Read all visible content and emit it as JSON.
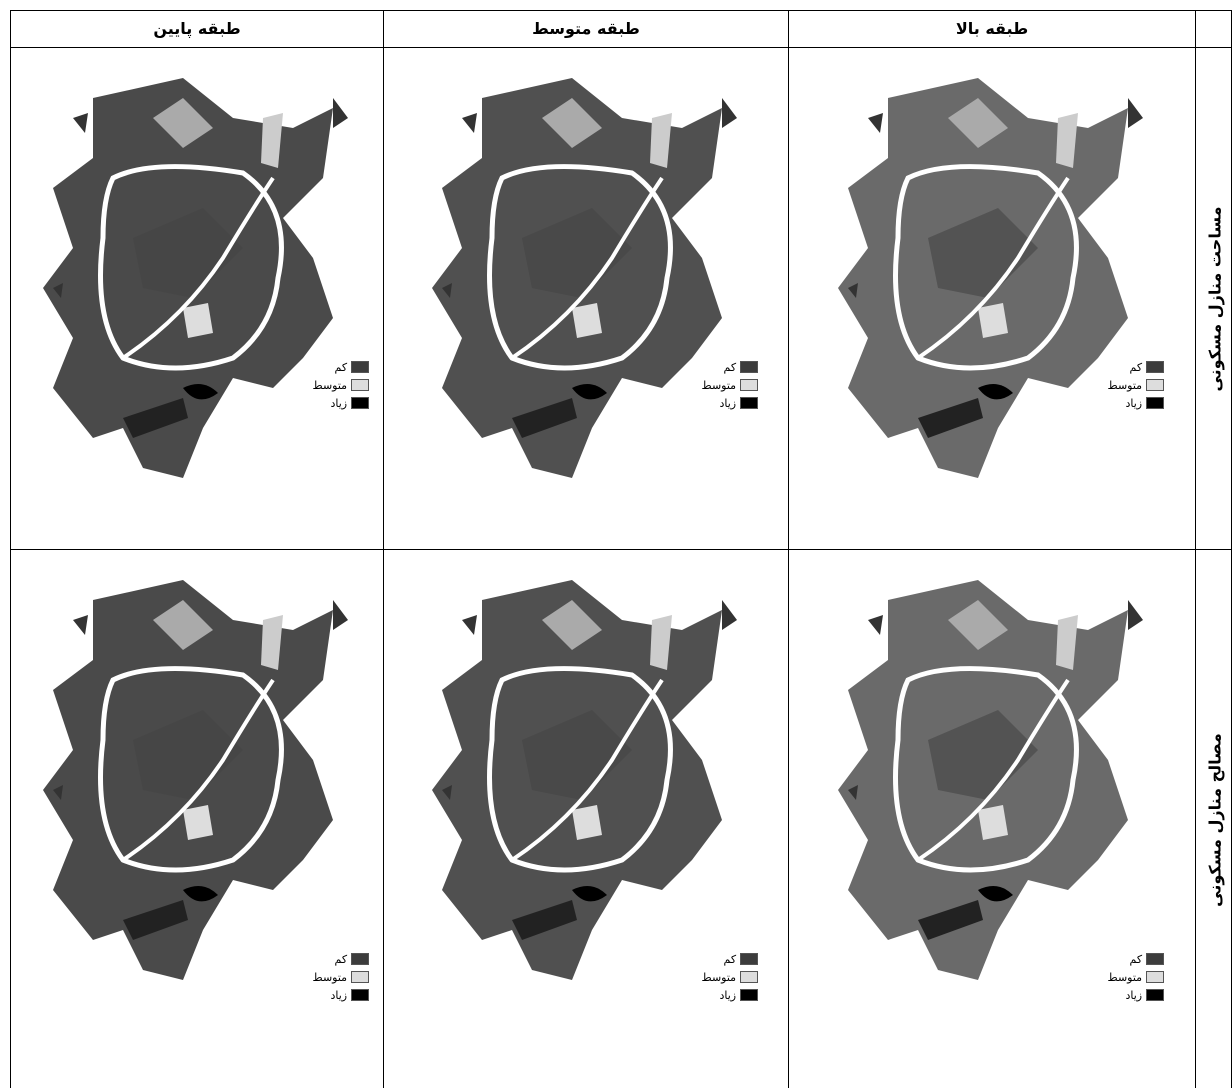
{
  "table": {
    "columns": [
      "طبقه بالا",
      "طبقه متوسط",
      "طبقه پایین"
    ],
    "rows": [
      {
        "label": "مساحت منازل مسکونی",
        "maps": [
          {
            "legend": [
              "کم",
              "متوسط",
              "زیاد"
            ]
          },
          {
            "legend": [
              "کم",
              "متوسط",
              "زیاد"
            ]
          },
          {
            "legend": [
              "کم",
              "متوسط",
              "زیاد"
            ]
          }
        ]
      },
      {
        "label": "مصالح منازل مسکونی",
        "maps": [
          {
            "legend": [
              "کم",
              "متوسط",
              "زیاد"
            ]
          },
          {
            "legend": [
              "کم",
              "متوسط",
              "زیاد"
            ]
          },
          {
            "legend": [
              "کم",
              "متوسط",
              "زیاد"
            ]
          }
        ]
      }
    ]
  }
}
